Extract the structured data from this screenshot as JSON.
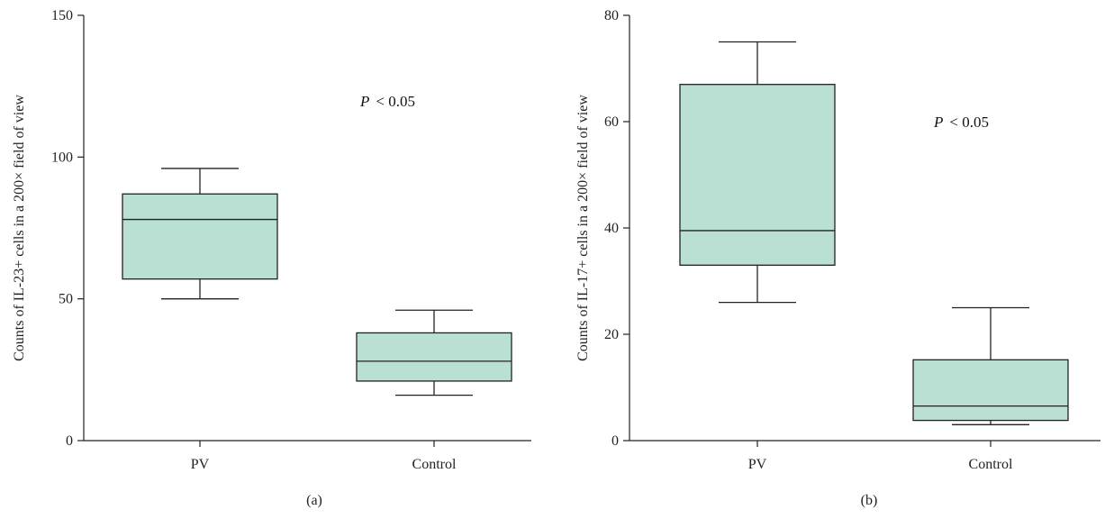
{
  "chart_data": [
    {
      "type": "box",
      "panel_label": "(a)",
      "ylabel": "Counts of IL-23+ cells in a 200× field of view",
      "ylim": [
        0,
        150
      ],
      "yticks": [
        0,
        50,
        100,
        150
      ],
      "ytick_labels": [
        "0",
        "50",
        "100",
        "150"
      ],
      "categories": [
        "PV",
        "Control"
      ],
      "boxes": [
        {
          "category": "PV",
          "min": 50,
          "q1": 57,
          "median": 78,
          "q3": 87,
          "max": 96
        },
        {
          "category": "Control",
          "min": 16,
          "q1": 21,
          "median": 28,
          "q3": 38,
          "max": 46
        }
      ],
      "annotation": {
        "p_symbol": "P",
        "text": "< 0.05"
      },
      "box_color": "#b9e0d2"
    },
    {
      "type": "box",
      "panel_label": "(b)",
      "ylabel": "Counts of IL-17+ cells in a 200× field of view",
      "ylim": [
        0,
        80
      ],
      "yticks": [
        0,
        20,
        40,
        60,
        80
      ],
      "ytick_labels": [
        "0",
        "20",
        "40",
        "60",
        "80"
      ],
      "categories": [
        "PV",
        "Control"
      ],
      "boxes": [
        {
          "category": "PV",
          "min": 26,
          "q1": 33,
          "median": 39.5,
          "q3": 67,
          "max": 75
        },
        {
          "category": "Control",
          "min": 3,
          "q1": 3.8,
          "median": 6.5,
          "q3": 15.2,
          "max": 25
        }
      ],
      "annotation": {
        "p_symbol": "P",
        "text": "< 0.05"
      },
      "box_color": "#b9e0d2"
    }
  ]
}
